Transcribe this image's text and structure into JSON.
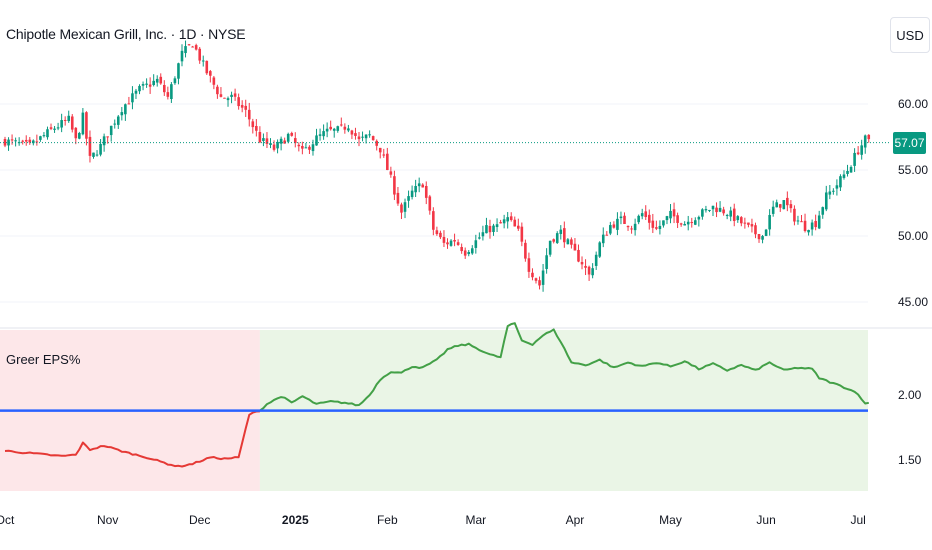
{
  "header": {
    "title": "Chipotle Mexican Grill, Inc. · 1D · NYSE",
    "currency": "USD"
  },
  "indicator": {
    "label": "Greer EPS%"
  },
  "colors": {
    "up": "#089981",
    "down": "#f23645",
    "last_price_bg": "#089981",
    "baseline": "#2962ff",
    "eps_up": "#43a047",
    "eps_down": "#e53935",
    "bg_negative": "#fde7e9",
    "bg_positive": "#eaf5e6",
    "grid": "#f0f3fa"
  },
  "last_price": "57.07",
  "chart_data": [
    {
      "type": "candlestick",
      "title": "Chipotle Mexican Grill, Inc. · 1D · NYSE",
      "ylim": [
        43.5,
        63.5
      ],
      "y_ticks": [
        "45.00",
        "50.00",
        "55.00",
        "60.00"
      ],
      "x_ticks": [
        "Oct",
        "Nov",
        "Dec",
        "2025",
        "Feb",
        "Mar",
        "Apr",
        "May",
        "Jun",
        "Jul"
      ],
      "last_price": 57.07,
      "waypoints": [
        [
          0,
          57.2
        ],
        [
          7,
          56.8
        ],
        [
          14,
          58.2
        ],
        [
          18,
          58.8
        ],
        [
          20,
          57.2
        ],
        [
          22,
          59.0
        ],
        [
          24,
          55.8
        ],
        [
          27,
          56.8
        ],
        [
          33,
          59.7
        ],
        [
          38,
          61.1
        ],
        [
          43,
          61.8
        ],
        [
          46,
          60.5
        ],
        [
          50,
          63.8
        ],
        [
          53,
          64.6
        ],
        [
          57,
          62.4
        ],
        [
          61,
          60.5
        ],
        [
          64,
          60.5
        ],
        [
          68,
          59.4
        ],
        [
          72,
          57.3
        ],
        [
          76,
          56.6
        ],
        [
          80,
          57.6
        ],
        [
          84,
          56.3
        ],
        [
          88,
          57.4
        ],
        [
          91,
          57.9
        ],
        [
          94,
          58.0
        ],
        [
          97,
          58.4
        ],
        [
          100,
          57.2
        ],
        [
          103,
          57.6
        ],
        [
          106,
          56.6
        ],
        [
          109,
          54.3
        ],
        [
          112,
          51.8
        ],
        [
          115,
          53.3
        ],
        [
          118,
          54.0
        ],
        [
          121,
          50.5
        ],
        [
          124,
          49.4
        ],
        [
          127,
          49.7
        ],
        [
          130,
          48.8
        ],
        [
          133,
          49.6
        ],
        [
          136,
          50.5
        ],
        [
          139,
          50.7
        ],
        [
          142,
          51.3
        ],
        [
          145,
          50.3
        ],
        [
          148,
          47.6
        ],
        [
          151,
          46.3
        ],
        [
          154,
          49.7
        ],
        [
          157,
          50.3
        ],
        [
          160,
          49.0
        ],
        [
          163,
          48.0
        ],
        [
          165,
          47.0
        ],
        [
          168,
          49.4
        ],
        [
          171,
          50.8
        ],
        [
          174,
          51.2
        ],
        [
          177,
          50.8
        ],
        [
          180,
          51.7
        ],
        [
          184,
          50.5
        ],
        [
          188,
          51.6
        ],
        [
          192,
          51.0
        ],
        [
          196,
          51.6
        ],
        [
          200,
          52.2
        ],
        [
          204,
          51.8
        ],
        [
          208,
          51.0
        ],
        [
          212,
          50.2
        ],
        [
          214,
          50.0
        ],
        [
          217,
          52.1
        ],
        [
          220,
          52.6
        ],
        [
          223,
          51.4
        ],
        [
          226,
          50.7
        ],
        [
          229,
          51.0
        ],
        [
          232,
          53.0
        ],
        [
          235,
          53.9
        ],
        [
          238,
          55.0
        ],
        [
          241,
          56.5
        ],
        [
          243,
          57.3
        ],
        [
          244,
          57.1
        ]
      ]
    },
    {
      "type": "line",
      "series": [
        {
          "name": "Greer EPS%"
        }
      ],
      "y_ticks": [
        "1.50",
        "2.00"
      ],
      "baseline": 1.88,
      "regime_change_index": 72,
      "waypoints": [
        [
          0,
          1.57
        ],
        [
          8,
          1.55
        ],
        [
          16,
          1.53
        ],
        [
          20,
          1.54
        ],
        [
          22,
          1.63
        ],
        [
          24,
          1.58
        ],
        [
          28,
          1.61
        ],
        [
          34,
          1.56
        ],
        [
          40,
          1.52
        ],
        [
          46,
          1.47
        ],
        [
          49,
          1.45
        ],
        [
          53,
          1.47
        ],
        [
          58,
          1.52
        ],
        [
          62,
          1.51
        ],
        [
          66,
          1.52
        ],
        [
          69,
          1.85
        ],
        [
          72,
          1.88
        ],
        [
          74,
          1.93
        ],
        [
          78,
          1.99
        ],
        [
          81,
          1.94
        ],
        [
          84,
          1.99
        ],
        [
          88,
          1.93
        ],
        [
          92,
          1.95
        ],
        [
          96,
          1.94
        ],
        [
          100,
          1.92
        ],
        [
          103,
          2.0
        ],
        [
          106,
          2.12
        ],
        [
          109,
          2.18
        ],
        [
          112,
          2.17
        ],
        [
          115,
          2.22
        ],
        [
          118,
          2.21
        ],
        [
          122,
          2.27
        ],
        [
          125,
          2.35
        ],
        [
          128,
          2.38
        ],
        [
          131,
          2.39
        ],
        [
          134,
          2.35
        ],
        [
          137,
          2.31
        ],
        [
          140,
          2.29
        ],
        [
          142,
          2.53
        ],
        [
          144,
          2.55
        ],
        [
          146,
          2.42
        ],
        [
          149,
          2.39
        ],
        [
          152,
          2.46
        ],
        [
          155,
          2.5
        ],
        [
          157,
          2.41
        ],
        [
          160,
          2.25
        ],
        [
          164,
          2.23
        ],
        [
          168,
          2.27
        ],
        [
          172,
          2.21
        ],
        [
          176,
          2.25
        ],
        [
          180,
          2.22
        ],
        [
          184,
          2.25
        ],
        [
          188,
          2.22
        ],
        [
          192,
          2.26
        ],
        [
          196,
          2.2
        ],
        [
          200,
          2.24
        ],
        [
          204,
          2.19
        ],
        [
          208,
          2.23
        ],
        [
          212,
          2.19
        ],
        [
          216,
          2.25
        ],
        [
          220,
          2.19
        ],
        [
          224,
          2.21
        ],
        [
          228,
          2.2
        ],
        [
          230,
          2.13
        ],
        [
          234,
          2.09
        ],
        [
          238,
          2.05
        ],
        [
          241,
          2.01
        ],
        [
          243,
          1.93
        ],
        [
          244,
          1.94
        ]
      ]
    }
  ]
}
